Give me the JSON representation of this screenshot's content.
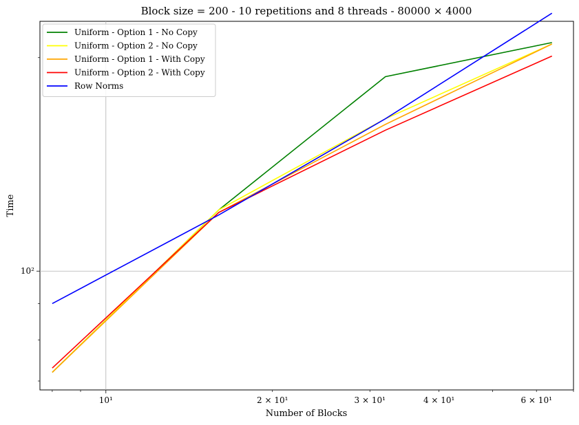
{
  "chart_data": {
    "type": "line",
    "title": "Block size = 200 - 10 repetitions and 8 threads - 80000 × 4000",
    "xlabel": "Number of Blocks",
    "ylabel": "Time",
    "xscale": "log",
    "yscale": "log",
    "xlim": [
      7.6,
      70
    ],
    "ylim": [
      68,
      225
    ],
    "x": [
      8,
      16,
      32,
      64
    ],
    "grid": "major only",
    "legend_position": "top-left",
    "x_major_ticks": [
      {
        "value": 10,
        "label": "10¹"
      }
    ],
    "x_minor_labeled_ticks": [
      {
        "value": 20,
        "label": "2 × 10¹"
      },
      {
        "value": 30,
        "label": "3 × 10¹"
      },
      {
        "value": 40,
        "label": "4 × 10¹"
      },
      {
        "value": 60,
        "label": "6 × 10¹"
      }
    ],
    "y_major_ticks": [
      {
        "value": 100,
        "label": "10²"
      }
    ],
    "series": [
      {
        "name": "Uniform - Option 1 - No Copy",
        "color": "#008000",
        "values": [
          72,
          122,
          188,
          210
        ]
      },
      {
        "name": "Uniform - Option 2 - No Copy",
        "color": "#ffff00",
        "values": [
          72,
          122,
          164,
          209
        ]
      },
      {
        "name": "Uniform - Option 1 - With Copy",
        "color": "#ffa500",
        "values": [
          72,
          121,
          161,
          209
        ]
      },
      {
        "name": "Uniform - Option 2 - With Copy",
        "color": "#ff0000",
        "values": [
          73,
          121,
          158,
          201
        ]
      },
      {
        "name": "Row Norms",
        "color": "#0000ff",
        "values": [
          90,
          120,
          164,
          231
        ]
      }
    ]
  }
}
